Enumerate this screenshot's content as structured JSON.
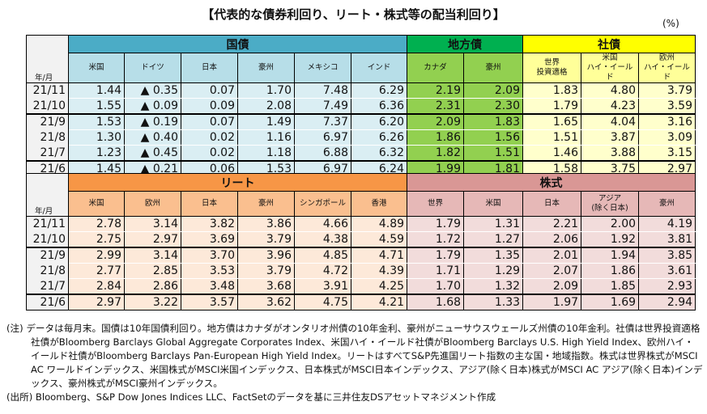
{
  "title": "【代表的な債券利回り、リート・株式等の配当利回り】",
  "unit": "(%)",
  "row_label": "年/月",
  "colors": {
    "govt_band": "#4bacc6",
    "govt_sub": "#b7dee8",
    "govt_data": "#daeef3",
    "muni_band": "#00b050",
    "muni_sub": "#92d050",
    "muni_data": "#92d050",
    "corp_band": "#ffff00",
    "corp_sub": "#ffff99",
    "corp_data": "#ffffcc",
    "reit_band": "#f79646",
    "reit_sub": "#fabf8f",
    "reit_data": "#fde9d9",
    "eq_band": "#d99795",
    "eq_sub": "#e6b8b7",
    "eq_data": "#f2dcdb"
  },
  "table1": {
    "groups": [
      {
        "label": "国債",
        "key": "govt",
        "cols": [
          "米国",
          "ドイツ",
          "日本",
          "豪州",
          "メキシコ",
          "インド"
        ]
      },
      {
        "label": "地方債",
        "key": "muni",
        "cols": [
          "カナダ",
          "豪州"
        ]
      },
      {
        "label": "社債",
        "key": "corp",
        "cols": [
          "世界\n投資適格",
          "米国\nハイ・イールド",
          "欧州\nハイ・イールド"
        ]
      }
    ],
    "rows": [
      {
        "date": "21/11",
        "values": [
          "1.44",
          "▲ 0.35",
          "0.07",
          "1.70",
          "7.48",
          "6.29",
          "2.19",
          "2.09",
          "1.83",
          "4.80",
          "3.79"
        ]
      },
      {
        "date": "21/10",
        "values": [
          "1.55",
          "▲ 0.09",
          "0.09",
          "2.08",
          "7.49",
          "6.36",
          "2.31",
          "2.30",
          "1.79",
          "4.23",
          "3.59"
        ]
      },
      {
        "date": "21/9",
        "values": [
          "1.53",
          "▲ 0.19",
          "0.07",
          "1.49",
          "7.37",
          "6.20",
          "2.09",
          "1.83",
          "1.65",
          "4.04",
          "3.16"
        ]
      },
      {
        "date": "21/8",
        "values": [
          "1.30",
          "▲ 0.40",
          "0.02",
          "1.16",
          "6.97",
          "6.26",
          "1.86",
          "1.56",
          "1.51",
          "3.87",
          "3.09"
        ]
      },
      {
        "date": "21/7",
        "values": [
          "1.23",
          "▲ 0.45",
          "0.02",
          "1.18",
          "6.88",
          "6.32",
          "1.82",
          "1.51",
          "1.46",
          "3.88",
          "3.15"
        ]
      },
      {
        "date": "21/6",
        "values": [
          "1.45",
          "▲ 0.21",
          "0.06",
          "1.53",
          "6.97",
          "6.24",
          "1.99",
          "1.81",
          "1.58",
          "3.75",
          "2.97"
        ]
      }
    ]
  },
  "table2": {
    "groups": [
      {
        "label": "リート",
        "key": "reit",
        "cols": [
          "米国",
          "欧州",
          "日本",
          "豪州",
          "シンガポール",
          "香港"
        ]
      },
      {
        "label": "株式",
        "key": "eq",
        "cols": [
          "世界",
          "米国",
          "日本",
          "アジア\n(除く日本)",
          "豪州"
        ]
      }
    ],
    "rows": [
      {
        "date": "21/11",
        "values": [
          "2.78",
          "3.14",
          "3.82",
          "3.86",
          "4.66",
          "4.89",
          "1.79",
          "1.31",
          "2.21",
          "2.00",
          "4.19"
        ]
      },
      {
        "date": "21/10",
        "values": [
          "2.75",
          "2.97",
          "3.69",
          "3.79",
          "4.38",
          "4.59",
          "1.72",
          "1.27",
          "2.06",
          "1.92",
          "3.81"
        ]
      },
      {
        "date": "21/9",
        "values": [
          "2.99",
          "3.14",
          "3.70",
          "3.96",
          "4.85",
          "4.71",
          "1.79",
          "1.35",
          "2.01",
          "1.94",
          "3.85"
        ]
      },
      {
        "date": "21/8",
        "values": [
          "2.77",
          "2.85",
          "3.53",
          "3.79",
          "4.72",
          "4.39",
          "1.71",
          "1.29",
          "2.07",
          "1.86",
          "3.61"
        ]
      },
      {
        "date": "21/7",
        "values": [
          "2.84",
          "2.86",
          "3.48",
          "3.68",
          "3.91",
          "4.25",
          "1.70",
          "1.32",
          "2.09",
          "1.85",
          "2.93"
        ]
      },
      {
        "date": "21/6",
        "values": [
          "2.97",
          "3.22",
          "3.57",
          "3.62",
          "4.75",
          "4.21",
          "1.68",
          "1.33",
          "1.97",
          "1.69",
          "2.94"
        ]
      }
    ]
  },
  "notes": {
    "note": "(注) データは毎月末。国債は10年国債利回り。地方債はカナダがオンタリオ州債の10年金利、豪州がニューサウスウェールズ州債の10年金利。社債は世界投資適格社債がBloomberg Barclays Global Aggregate Corporates Index、米国ハイ・イールド社債がBloomberg Barclays U.S. High Yield Index、欧州ハイ・イールド社債がBloomberg Barclays Pan-European High Yield Index。リートはすべてS&P先進国リート指数の主な国・地域指数。株式は世界株式がMSCI AC ワールドインデックス、米国株式がMSCI米国インデックス、日本株式がMSCI日本インデックス、アジア(除く日本)株式がMSCI AC アジア(除く日本)インデックス、豪州株式がMSCI豪州インデックス。",
    "source": "(出所) Bloomberg、S&P Dow Jones Indices LLC、FactSetのデータを基に三井住友DSアセットマネジメント作成"
  }
}
